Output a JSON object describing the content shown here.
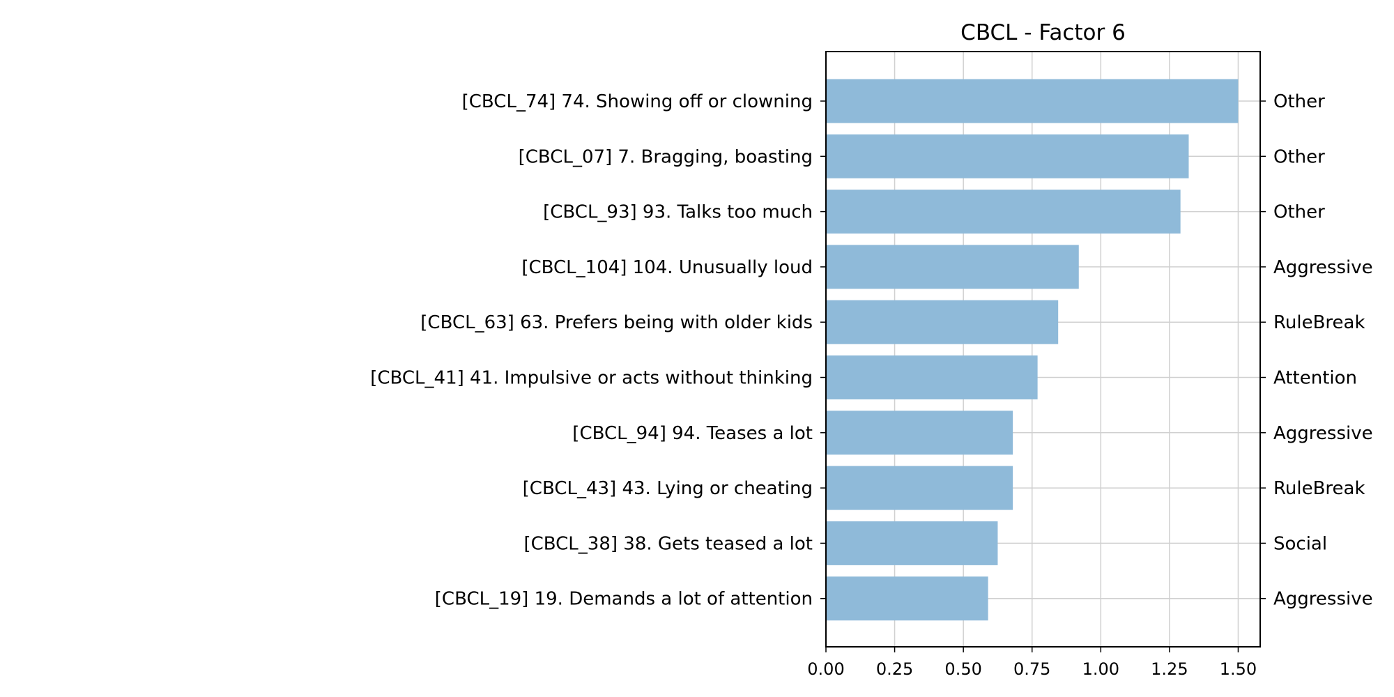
{
  "chart_data": {
    "type": "bar",
    "orientation": "horizontal",
    "title": "CBCL - Factor 6",
    "categories": [
      "[CBCL_74] 74. Showing off or clowning",
      "[CBCL_07] 7. Bragging, boasting",
      "[CBCL_93] 93. Talks too much",
      "[CBCL_104] 104. Unusually loud",
      "[CBCL_63] 63. Prefers being with older kids",
      "[CBCL_41] 41. Impulsive or acts without thinking",
      "[CBCL_94] 94. Teases a lot",
      "[CBCL_43] 43. Lying or cheating",
      "[CBCL_38] 38. Gets teased a lot",
      "[CBCL_19] 19. Demands a lot of attention"
    ],
    "values": [
      1.5,
      1.32,
      1.29,
      0.92,
      0.845,
      0.77,
      0.68,
      0.68,
      0.625,
      0.59
    ],
    "right_labels": [
      "Other",
      "Other",
      "Other",
      "Aggressive",
      "RuleBreak",
      "Attention",
      "Aggressive",
      "RuleBreak",
      "Social",
      "Aggressive"
    ],
    "xlim": [
      0,
      1.58
    ],
    "xticks": [
      "0.00",
      "0.25",
      "0.50",
      "0.75",
      "1.00",
      "1.25",
      "1.50"
    ],
    "grid": true,
    "colors": {
      "bar": "#8fbad9",
      "grid": "#d0d0d0",
      "axis": "#000000"
    }
  }
}
